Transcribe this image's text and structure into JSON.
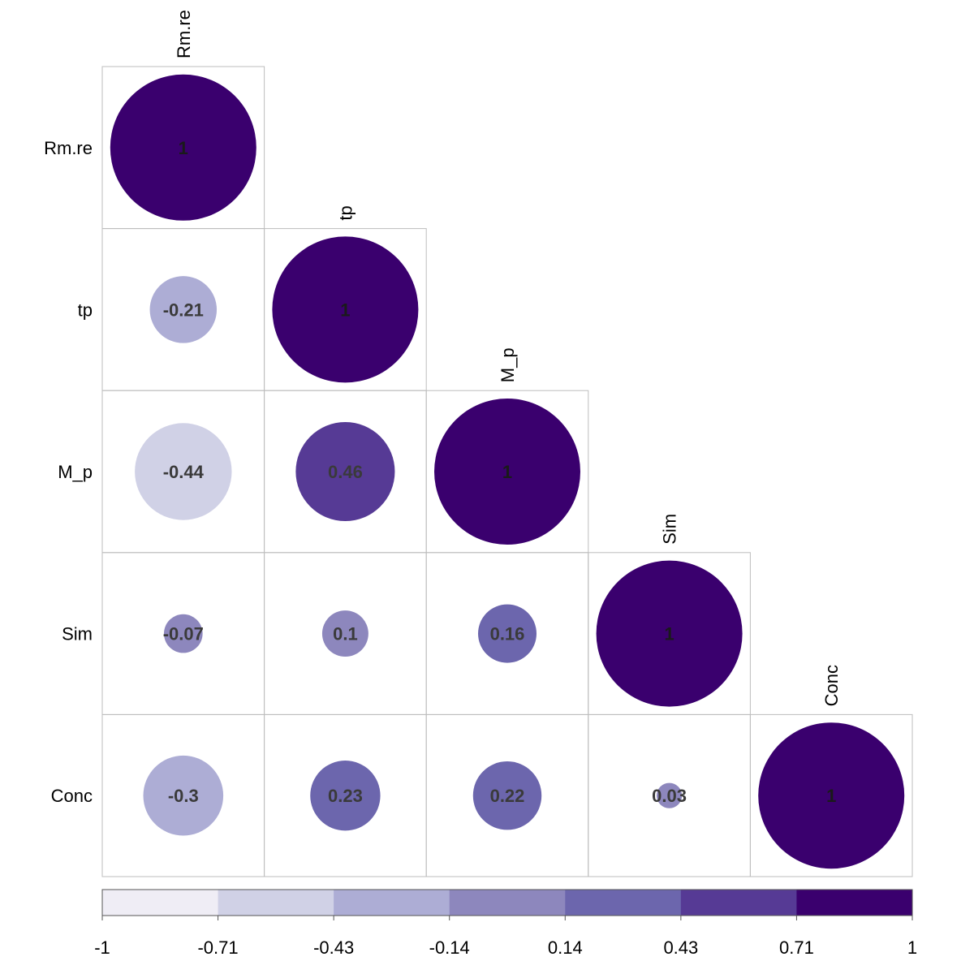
{
  "chart_data": {
    "type": "heatmap",
    "style": "correlation matrix, lower triangle, circles sized and colored by value",
    "variables": [
      "Rm.re",
      "tp",
      "M_p",
      "Sim",
      "Conc"
    ],
    "matrix": [
      [
        1,
        null,
        null,
        null,
        null
      ],
      [
        -0.21,
        1,
        null,
        null,
        null
      ],
      [
        -0.44,
        0.46,
        1,
        null,
        null
      ],
      [
        -0.07,
        0.1,
        0.16,
        1,
        null
      ],
      [
        -0.3,
        0.23,
        0.22,
        0.03,
        1
      ]
    ],
    "value_labels": [
      [
        "1",
        "",
        "",
        "",
        ""
      ],
      [
        "-0.21",
        "1",
        "",
        "",
        ""
      ],
      [
        "-0.44",
        "0.46",
        "1",
        "",
        ""
      ],
      [
        "-0.07",
        "0.1",
        "0.16",
        "1",
        ""
      ],
      [
        "-0.3",
        "0.23",
        "0.22",
        "0.03",
        "1"
      ]
    ],
    "color_scale": {
      "range": [
        -1,
        1
      ],
      "colors": [
        "#efedf5",
        "#d0d1e6",
        "#adadd5",
        "#8d87bd",
        "#6c66ad",
        "#563a95",
        "#3a006e"
      ],
      "tick_labels": [
        "-1",
        "-0.71",
        "-0.43",
        "-0.14",
        "0.14",
        "0.43",
        "0.71",
        "1"
      ]
    },
    "legend_placement": "bottom",
    "grid": true
  }
}
